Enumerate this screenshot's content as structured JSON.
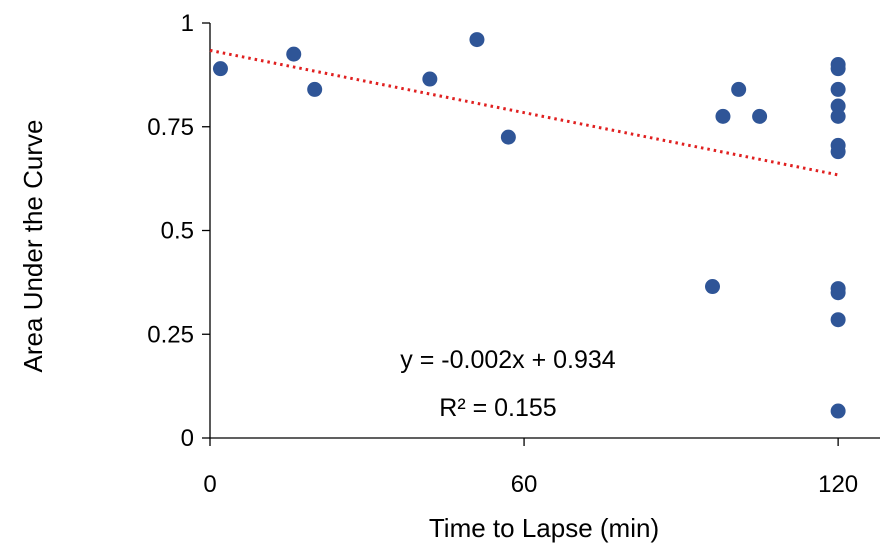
{
  "chart_data": {
    "type": "scatter",
    "xlabel": "Time to Lapse (min)",
    "ylabel": "Area Under the Curve",
    "xlim": [
      0,
      128
    ],
    "ylim": [
      0,
      1
    ],
    "xticks": [
      0,
      60,
      120
    ],
    "xtick_labels": [
      "0",
      "60",
      "120"
    ],
    "yticks": [
      0,
      0.25,
      0.5,
      0.75,
      1
    ],
    "ytick_labels": [
      "0",
      "0.25",
      "0.5",
      "0.75",
      "1"
    ],
    "grid": false,
    "legend": "none",
    "series": [
      {
        "color": "#2f5597",
        "points": [
          {
            "x": 2,
            "y": 0.89
          },
          {
            "x": 16,
            "y": 0.925
          },
          {
            "x": 20,
            "y": 0.84
          },
          {
            "x": 42,
            "y": 0.865
          },
          {
            "x": 51,
            "y": 0.96
          },
          {
            "x": 57,
            "y": 0.725
          },
          {
            "x": 96,
            "y": 0.365
          },
          {
            "x": 98,
            "y": 0.775
          },
          {
            "x": 101,
            "y": 0.84
          },
          {
            "x": 105,
            "y": 0.775
          },
          {
            "x": 120,
            "y": 0.9
          },
          {
            "x": 120,
            "y": 0.89
          },
          {
            "x": 120,
            "y": 0.84
          },
          {
            "x": 120,
            "y": 0.8
          },
          {
            "x": 120,
            "y": 0.775
          },
          {
            "x": 120,
            "y": 0.705
          },
          {
            "x": 120,
            "y": 0.69
          },
          {
            "x": 120,
            "y": 0.36
          },
          {
            "x": 120,
            "y": 0.35
          },
          {
            "x": 120,
            "y": 0.285
          },
          {
            "x": 120,
            "y": 0.065
          }
        ]
      }
    ],
    "trendline": {
      "type": "linear",
      "slope": -0.0025,
      "intercept": 0.934,
      "x_range": [
        0,
        120
      ],
      "color": "#e02020",
      "style": "dotted",
      "equation_label": "y = -0.002x + 0.934",
      "r2_label": "R² = 0.155"
    }
  }
}
